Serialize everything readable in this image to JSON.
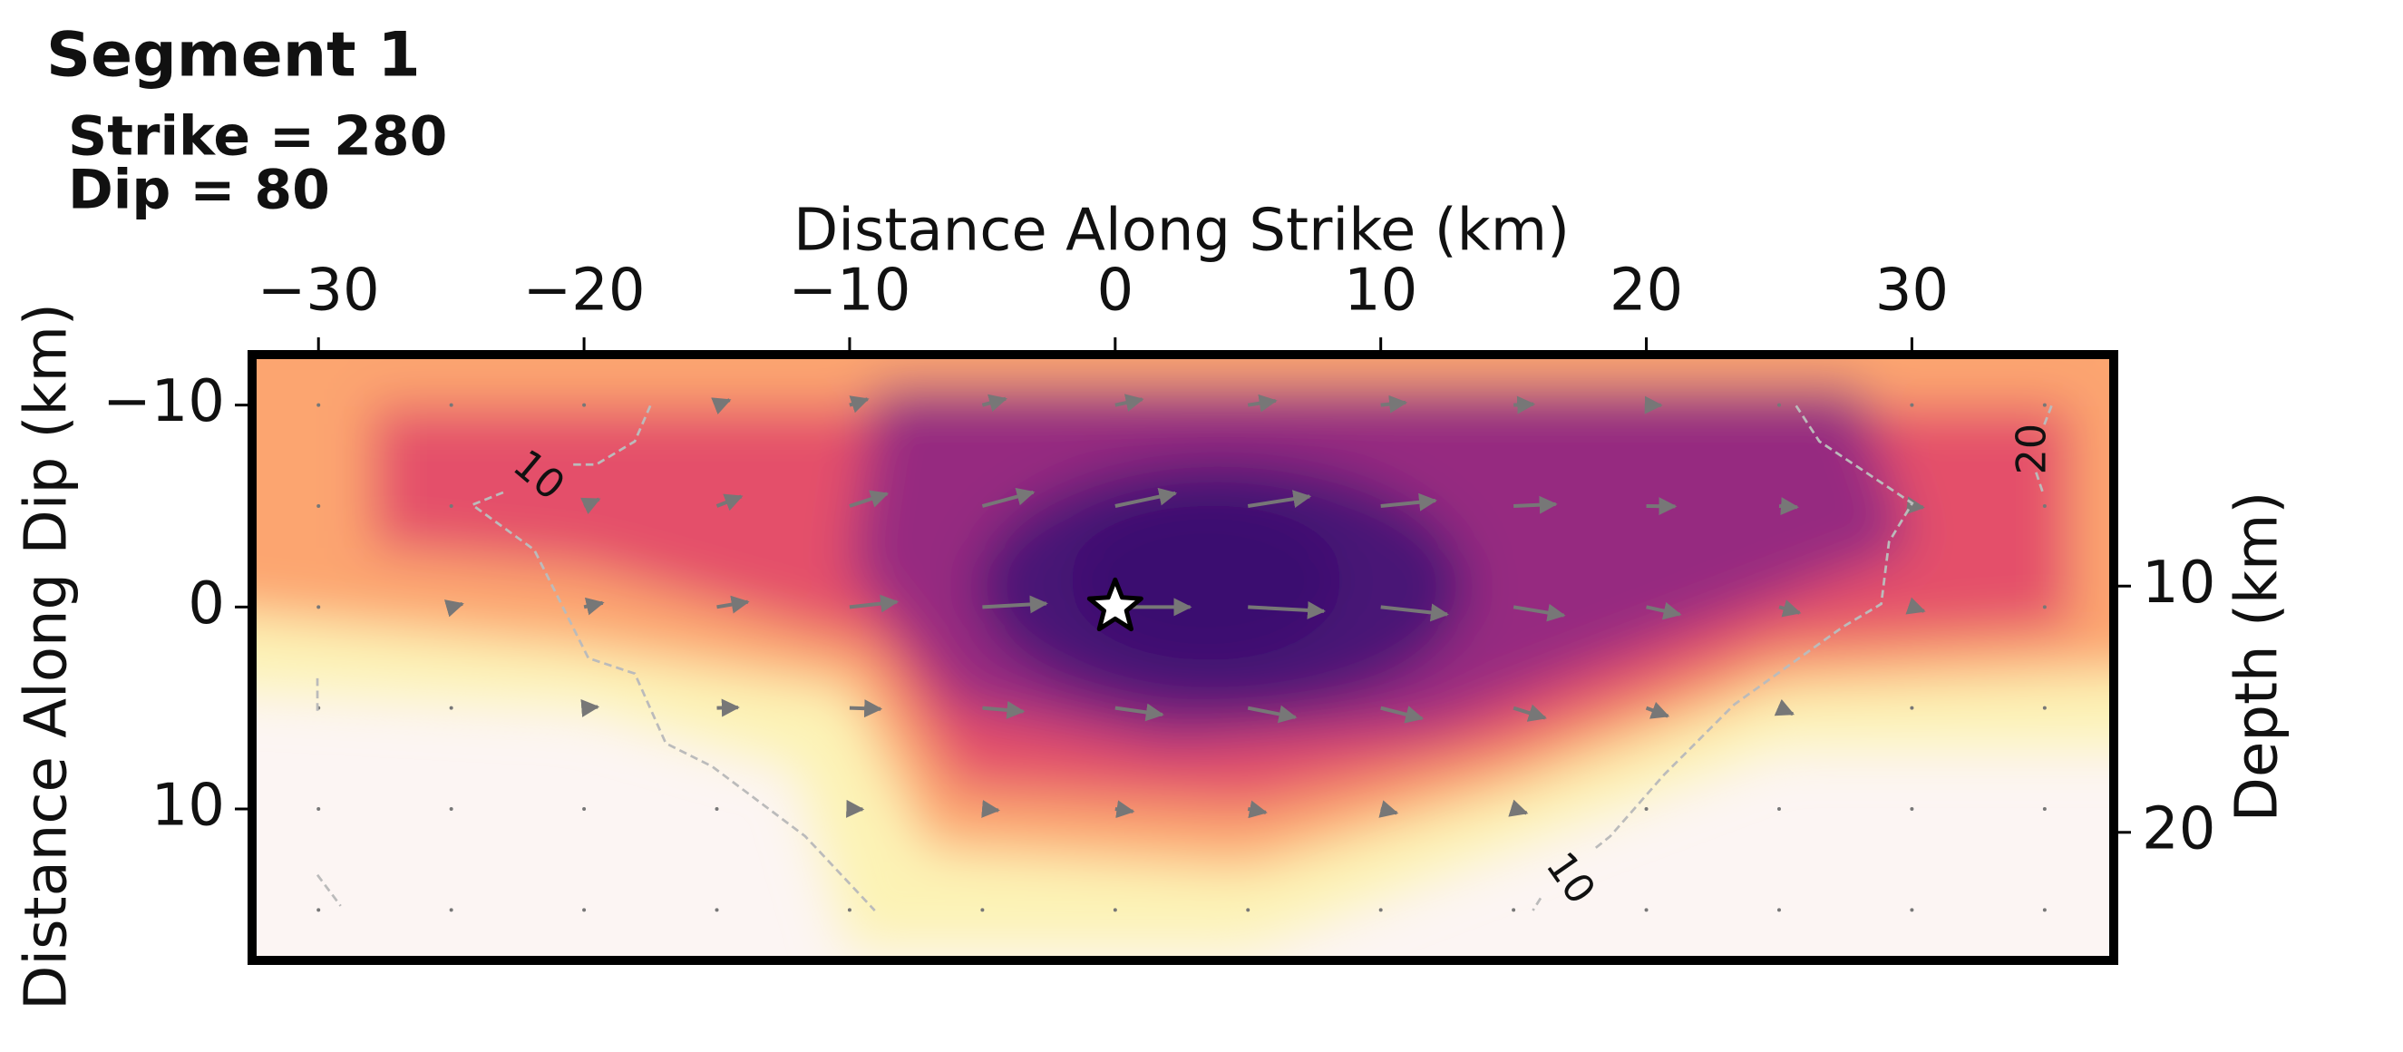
{
  "chart_data": {
    "type": "heatmap",
    "title": "Segment 1",
    "annotations": [
      "Strike = 280",
      "Dip = 80"
    ],
    "x_label": "Distance Along Strike (km)",
    "y_label": "Distance Along Dip (km)",
    "y2_label": "Depth (km)",
    "xlim": [
      -32.5,
      37.6
    ],
    "ylim": [
      17.5,
      -12.5
    ],
    "xticks": [
      {
        "value": -30,
        "label": "−30"
      },
      {
        "value": -20,
        "label": "−20"
      },
      {
        "value": -10,
        "label": "−10"
      },
      0,
      10,
      20,
      30
    ],
    "yticks": [
      {
        "value": -10,
        "label": "−10"
      },
      0,
      10
    ],
    "y2lim": [
      25.2,
      0.6
    ],
    "y2ticks": [
      10,
      20
    ],
    "contours": [
      10,
      10,
      20
    ],
    "hypocenter": {
      "x": 0,
      "y": 0
    }
  }
}
